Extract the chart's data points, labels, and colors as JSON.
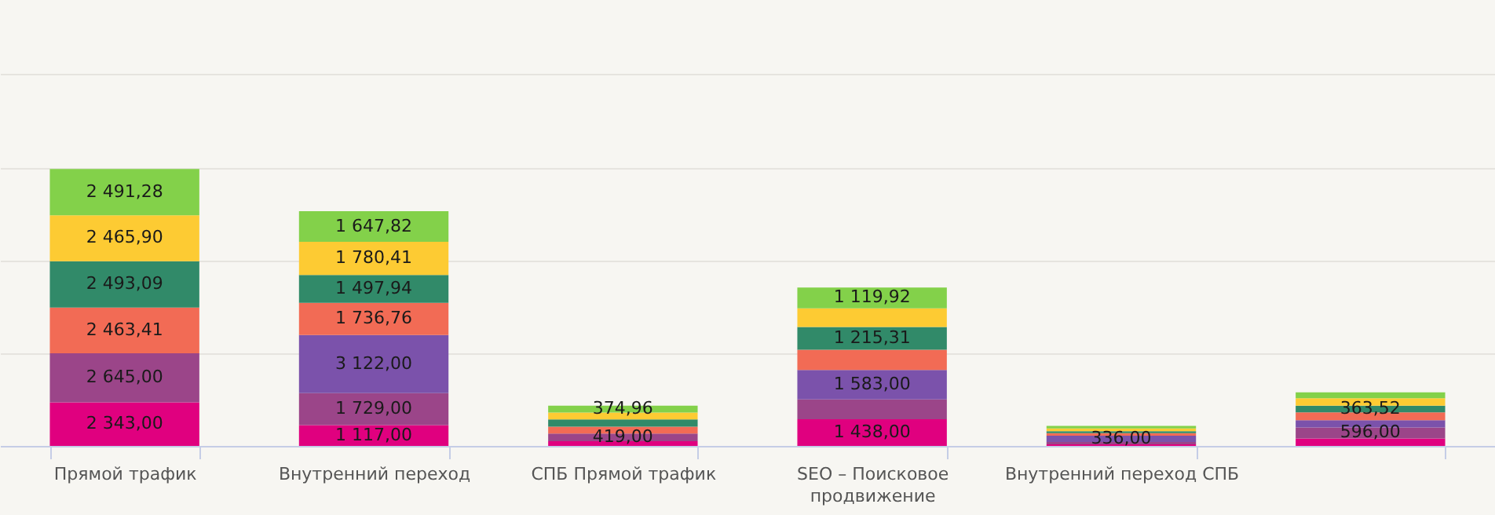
{
  "chart_data": {
    "type": "bar",
    "stacked": true,
    "categories": [
      "Прямой трафик",
      "Внутренний переход",
      "СПБ Прямой трафик",
      "SEO – Поисковое продвижение",
      "Внутренний переход СПБ",
      null
    ],
    "series": [
      {
        "color": "#e0007f",
        "values": [
          2343,
          1117,
          250,
          1438,
          80,
          400
        ],
        "value_labels": [
          "2 343,00",
          "1 117,00",
          null,
          "1 438,00",
          null,
          null
        ]
      },
      {
        "color": "#9b4589",
        "values": [
          2645,
          1729,
          419,
          1065,
          130,
          596
        ],
        "value_labels": [
          "2 645,00",
          "1 729,00",
          "419,00",
          null,
          null,
          "596,00"
        ]
      },
      {
        "color": "#7b52ab",
        "values": [
          null,
          3122,
          null,
          1583,
          336,
          390
        ],
        "value_labels": [
          null,
          "3 122,00",
          null,
          "1 583,00",
          "336,00",
          null
        ]
      },
      {
        "color": "#f26b55",
        "values": [
          2463.41,
          1736.76,
          365,
          1095,
          140,
          420
        ],
        "value_labels": [
          "2 463,41",
          "1 736,76",
          null,
          null,
          null,
          null
        ]
      },
      {
        "color": "#318a69",
        "values": [
          2493.09,
          1497.94,
          395,
          1215.31,
          110,
          363.52
        ],
        "value_labels": [
          "2 493,09",
          "1 497,94",
          null,
          "1 215,31",
          null,
          "363,52"
        ]
      },
      {
        "color": "#fdcb33",
        "values": [
          2465.9,
          1780.41,
          365,
          1010,
          140,
          400
        ],
        "value_labels": [
          "2 465,90",
          "1 780,41",
          null,
          null,
          null,
          null
        ]
      },
      {
        "color": "#83d14a",
        "values": [
          2491.28,
          1647.82,
          374.96,
          1119.92,
          140,
          310
        ],
        "value_labels": [
          "2 491,28",
          "1 647,82",
          "374,96",
          "1 119,92",
          null,
          null
        ]
      }
    ],
    "ylim": [
      0,
      24000
    ],
    "yticks": [
      {
        "value": 5000,
        "label": null
      },
      {
        "value": 10000,
        "label": null
      },
      {
        "value": 15000,
        "label": null
      },
      {
        "value": 20000,
        "label": null
      }
    ],
    "grid": "y",
    "tick_labels": "x"
  }
}
